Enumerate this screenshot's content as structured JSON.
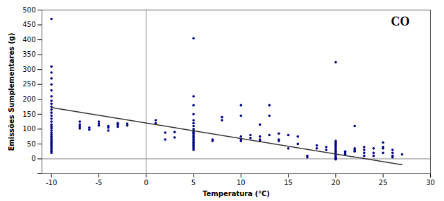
{
  "chart_data": {
    "type": "scatter",
    "xlabel": "Temperatura (°C)",
    "ylabel": "Emissões Sumplementares (g)",
    "annotation": "CO",
    "series": [
      {
        "type": "scatter",
        "color": "#00008B",
        "x": [
          -10,
          -10,
          -10,
          -10,
          -10,
          -10,
          -10,
          -10,
          -10,
          -10,
          -10,
          -10,
          -10,
          -10,
          -10,
          -10,
          -10,
          -10,
          -10,
          -10,
          -10,
          -10,
          -10,
          -10,
          -10,
          -10,
          -10,
          -10,
          -10,
          -10,
          -10,
          -10,
          -10,
          -7,
          -7,
          -7,
          -7,
          -6,
          -6,
          -5,
          -5,
          -5,
          -4,
          -4,
          -4,
          -3,
          -3,
          -3,
          -2,
          -2,
          1,
          1,
          2,
          2,
          3,
          3,
          5,
          5,
          5,
          5,
          5,
          5,
          5,
          5,
          5,
          5,
          5,
          5,
          5,
          5,
          5,
          5,
          5,
          5,
          5,
          5,
          5,
          5,
          7,
          7,
          8,
          8,
          10,
          10,
          10,
          10,
          10,
          11,
          11,
          12,
          12,
          12,
          12,
          13,
          13,
          13,
          14,
          14,
          14,
          15,
          15,
          16,
          16,
          17,
          17,
          18,
          18,
          19,
          19,
          20,
          20,
          20,
          20,
          20,
          20,
          20,
          20,
          20,
          20,
          20,
          20,
          20,
          20,
          20,
          20,
          21,
          21,
          21,
          22,
          22,
          22,
          22,
          23,
          23,
          23,
          23,
          24,
          24,
          24,
          25,
          25,
          25,
          25,
          26,
          26,
          26,
          26,
          27
        ],
        "values": [
          470,
          310,
          290,
          270,
          250,
          230,
          210,
          195,
          185,
          175,
          165,
          155,
          145,
          135,
          125,
          115,
          108,
          102,
          95,
          88,
          82,
          76,
          70,
          65,
          60,
          55,
          50,
          45,
          40,
          35,
          30,
          25,
          20,
          125,
          115,
          108,
          102,
          105,
          98,
          125,
          118,
          112,
          110,
          105,
          95,
          120,
          115,
          108,
          118,
          112,
          130,
          120,
          88,
          65,
          90,
          72,
          405,
          210,
          180,
          150,
          130,
          120,
          110,
          100,
          95,
          90,
          85,
          80,
          75,
          70,
          65,
          60,
          55,
          50,
          45,
          40,
          35,
          30,
          65,
          60,
          140,
          130,
          180,
          145,
          75,
          65,
          60,
          80,
          70,
          115,
          75,
          65,
          60,
          180,
          145,
          80,
          85,
          65,
          60,
          80,
          35,
          75,
          50,
          10,
          5,
          45,
          35,
          40,
          30,
          325,
          60,
          55,
          50,
          45,
          40,
          35,
          30,
          25,
          20,
          15,
          10,
          5,
          2,
          0,
          -2,
          25,
          20,
          15,
          110,
          35,
          30,
          25,
          40,
          30,
          20,
          10,
          35,
          20,
          10,
          55,
          40,
          35,
          20,
          30,
          20,
          10,
          5,
          15
        ]
      },
      {
        "type": "line",
        "color": "#333333",
        "x": [
          -10,
          27
        ],
        "values": [
          172,
          -20
        ]
      }
    ],
    "reference_lines": {
      "x": [
        0
      ],
      "y": [
        0
      ],
      "color": "#888888"
    },
    "xlim": [
      -11,
      30
    ],
    "ylim": [
      -50,
      500
    ],
    "xticks": [
      -10,
      -5,
      0,
      5,
      10,
      15,
      20,
      25,
      30
    ],
    "yticks": [
      {
        "value": -50,
        "label": ""
      },
      0,
      50,
      100,
      150,
      200,
      250,
      300,
      350,
      400,
      450,
      500
    ]
  }
}
